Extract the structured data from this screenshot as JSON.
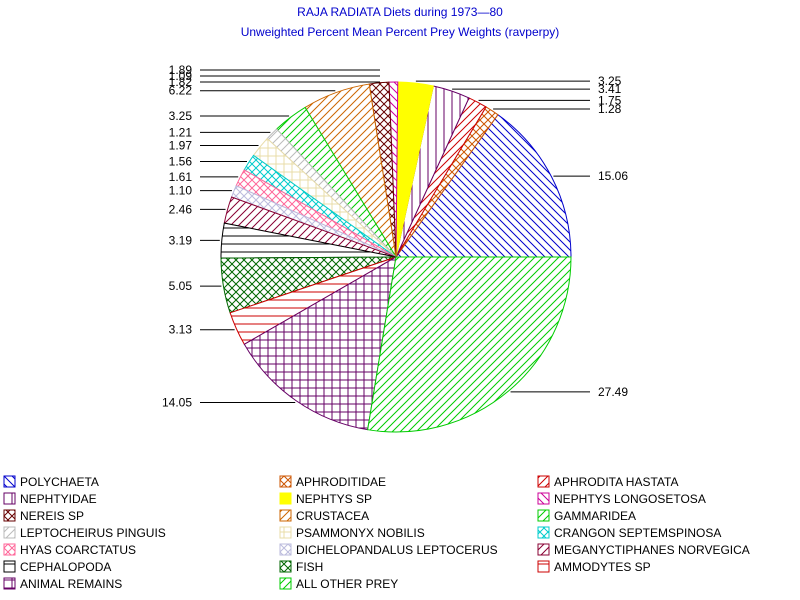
{
  "chart_data": {
    "type": "pie",
    "title": "RAJA RADIATA Diets during 1973—80",
    "subtitle": "Unweighted Percent Mean Percent Prey  Weights (ravperpy)",
    "slices": [
      {
        "name": "POLYCHAETA",
        "value": 15.06,
        "label": "15.06",
        "color": "#0000cc",
        "pattern": "diag-down"
      },
      {
        "name": "APHRODITIDAE",
        "value": 1.28,
        "label": "1.28",
        "color": "#cc5500",
        "pattern": "cross-diag"
      },
      {
        "name": "APHRODITA HASTATA",
        "value": 1.75,
        "label": "1.75",
        "color": "#cc0000",
        "pattern": "diag-up"
      },
      {
        "name": "NEPHTYIDAE",
        "value": 3.41,
        "label": "3.41",
        "color": "#660066",
        "pattern": "vert"
      },
      {
        "name": "NEPHTYS SP",
        "value": 3.25,
        "label": "3.25",
        "color": "#ffff00",
        "pattern": "solid"
      },
      {
        "name": "NEPHTYS LONGOSETOSA",
        "value": 0.8,
        "label": "",
        "color": "#cc0099",
        "pattern": "diag-down"
      },
      {
        "name": "NEREIS SP",
        "value": 1.8,
        "label": "",
        "color": "#660000",
        "pattern": "cross-diag"
      },
      {
        "name": "CRUSTACEA",
        "value": 6.22,
        "label": "6.22",
        "color": "#cc6600",
        "pattern": "diag-up"
      },
      {
        "name": "GAMMARIDEA",
        "value": 3.25,
        "label": "3.25",
        "color": "#00cc00",
        "pattern": "diag-up"
      },
      {
        "name": "LEPTOCHEIRUS PINGUIS",
        "value": 1.21,
        "label": "1.21",
        "color": "#bbbbbb",
        "pattern": "diag-up"
      },
      {
        "name": "PSAMMONYX NOBILIS",
        "value": 1.97,
        "label": "1.97",
        "color": "#e8dca8",
        "pattern": "grid"
      },
      {
        "name": "CRANGON SEPTEMSPINOSA",
        "value": 1.56,
        "label": "1.56",
        "color": "#00cccc",
        "pattern": "cross-diag"
      },
      {
        "name": "HYAS COARCTATUS",
        "value": 1.61,
        "label": "1.61",
        "color": "#ff6699",
        "pattern": "cross-diag"
      },
      {
        "name": "DICHELOPANDALUS LEPTOCERUS",
        "value": 1.1,
        "label": "1.10",
        "color": "#bbbbdd",
        "pattern": "cross-diag"
      },
      {
        "name": "MEGANYCTIPHANES NORVEGICA",
        "value": 2.46,
        "label": "2.46",
        "color": "#880033",
        "pattern": "diag-up"
      },
      {
        "name": "CEPHALOPODA",
        "value": 3.19,
        "label": "3.19",
        "color": "#000000",
        "pattern": "horiz"
      },
      {
        "name": "FISH",
        "value": 5.05,
        "label": "5.05",
        "color": "#006600",
        "pattern": "cross-diag"
      },
      {
        "name": "AMMODYTES SP",
        "value": 3.13,
        "label": "3.13",
        "color": "#cc0000",
        "pattern": "horiz"
      },
      {
        "name": "ANIMAL REMAINS",
        "value": 14.05,
        "label": "14.05",
        "color": "#660066",
        "pattern": "grid"
      },
      {
        "name": "ALL OTHER PREY",
        "value": 27.49,
        "label": "27.49",
        "color": "#00cc00",
        "pattern": "diag-up"
      }
    ],
    "extra_labels": [
      "1.89",
      "1.09",
      "1.82"
    ],
    "legend": {
      "placement": "bottom",
      "columns": 3
    },
    "start_angle_deg": 0,
    "direction": "counterclockwise"
  }
}
